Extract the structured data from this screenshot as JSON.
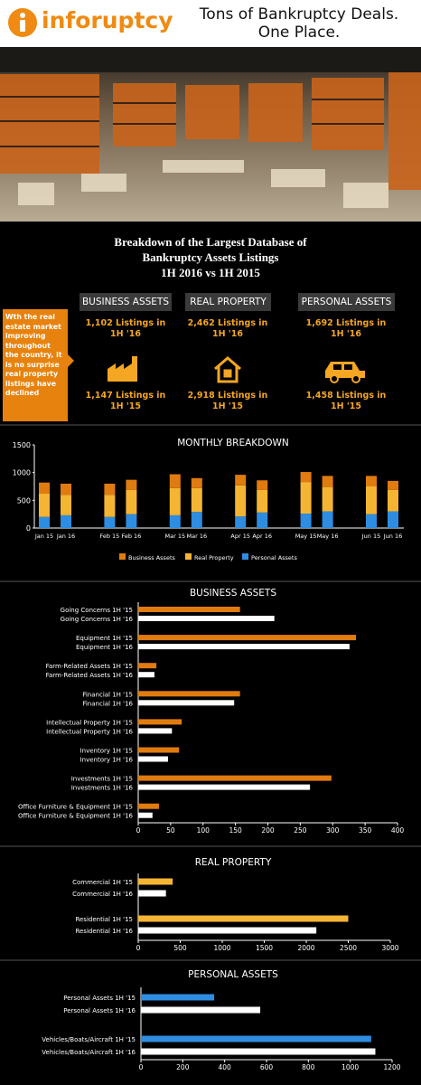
{
  "header": {
    "logo": "inforuptcy",
    "tagline": [
      "Tons of Bankruptcy Deals.",
      "One Place."
    ]
  },
  "title": [
    "Breakdown of the Largest Database of",
    "Bankruptcy Assets Listings",
    "1H 2016 vs 1H 2015"
  ],
  "note": "Wth the real estate market improving throughout the country, it is no surprise real property listings have declined",
  "stats": [
    {
      "heading": "BUSINESS ASSETS",
      "y16": "1,102 Listings in 1H '16",
      "y15": "1,147 Listings in 1H '15"
    },
    {
      "heading": "REAL PROPERTY",
      "y16": "2,462 Listings in 1H '16",
      "y15": "2,918 Listings in 1H '15"
    },
    {
      "heading": "PERSONAL ASSETS",
      "y16": "1,692 Listings in 1H '16",
      "y15": "1,458 Listings in 1H '15"
    }
  ],
  "chart_data": [
    {
      "type": "bar",
      "stacked": true,
      "title": "MONTHLY BREAKDOWN",
      "categories": [
        "Jan 15",
        "Jan 16",
        "Feb 15",
        "Feb 16",
        "Mar 15",
        "Mar 16",
        "Apr 15",
        "Apr 16",
        "May 15",
        "May 16",
        "Jun 15",
        "Jun 16"
      ],
      "series": [
        {
          "name": "Business Assets",
          "color": "#e07b10",
          "values": [
            200,
            200,
            200,
            180,
            250,
            180,
            190,
            170,
            180,
            200,
            190,
            160
          ]
        },
        {
          "name": "Real Property",
          "color": "#f5b533",
          "values": [
            420,
            370,
            400,
            440,
            490,
            430,
            560,
            410,
            570,
            440,
            500,
            390
          ]
        },
        {
          "name": "Personal Assets",
          "color": "#2e8de0",
          "values": [
            200,
            230,
            200,
            250,
            230,
            290,
            210,
            280,
            260,
            300,
            250,
            300
          ]
        }
      ],
      "ylim": [
        0,
        1500
      ],
      "yticks": [
        0,
        500,
        1000,
        1500
      ]
    },
    {
      "type": "bar",
      "horizontal": true,
      "title": "BUSINESS ASSETS",
      "categories": [
        "Going Concerns 1H '15",
        "Going Concerns 1H '16",
        "Equipment 1H '15",
        "Equipment 1H '16",
        "Farm-Related Assets 1H '15",
        "Farm-Related Assets 1H '16",
        "Financial 1H '15",
        "Financial 1H '16",
        "Intellectual Property 1H '15",
        "Intellectual Property 1H '16",
        "Inventory 1H '15",
        "Inventory 1H '16",
        "Investments 1H '15",
        "Investments 1H '16",
        "Office Furniture & Equipment 1H '15",
        "Office Furniture & Equipment 1H '16"
      ],
      "values": [
        157,
        210,
        336,
        326,
        28,
        25,
        157,
        148,
        67,
        52,
        63,
        46,
        298,
        265,
        32,
        22
      ],
      "colors": [
        "#e07b10",
        "#ffffff",
        "#e07b10",
        "#ffffff",
        "#e07b10",
        "#ffffff",
        "#e07b10",
        "#ffffff",
        "#e07b10",
        "#ffffff",
        "#e07b10",
        "#ffffff",
        "#e07b10",
        "#ffffff",
        "#e07b10",
        "#ffffff"
      ],
      "xlim": [
        0,
        400
      ],
      "xticks": [
        0,
        50,
        100,
        150,
        200,
        250,
        300,
        350,
        400
      ]
    },
    {
      "type": "bar",
      "horizontal": true,
      "title": "REAL PROPERTY",
      "categories": [
        "Commercial 1H '15",
        "Commercial 1H '16",
        "Residential 1H '15",
        "Residential 1H '16"
      ],
      "values": [
        410,
        330,
        2500,
        2120
      ],
      "colors": [
        "#f5b533",
        "#ffffff",
        "#f5b533",
        "#ffffff"
      ],
      "xlim": [
        0,
        3000
      ],
      "xticks": [
        0,
        500,
        1000,
        1500,
        2000,
        2500,
        3000
      ]
    },
    {
      "type": "bar",
      "horizontal": true,
      "title": "PERSONAL ASSETS",
      "categories": [
        "Personal Assets 1H '15",
        "Personal Assets 1H '16",
        "Vehicles/Boats/Aircraft 1H '15",
        "Vehicles/Boats/Aircraft 1H '16"
      ],
      "values": [
        350,
        570,
        1100,
        1120
      ],
      "colors": [
        "#2e8de0",
        "#ffffff",
        "#2e8de0",
        "#ffffff"
      ],
      "xlim": [
        0,
        1200
      ],
      "xticks": [
        0,
        200,
        400,
        600,
        800,
        1000,
        1200
      ]
    }
  ]
}
